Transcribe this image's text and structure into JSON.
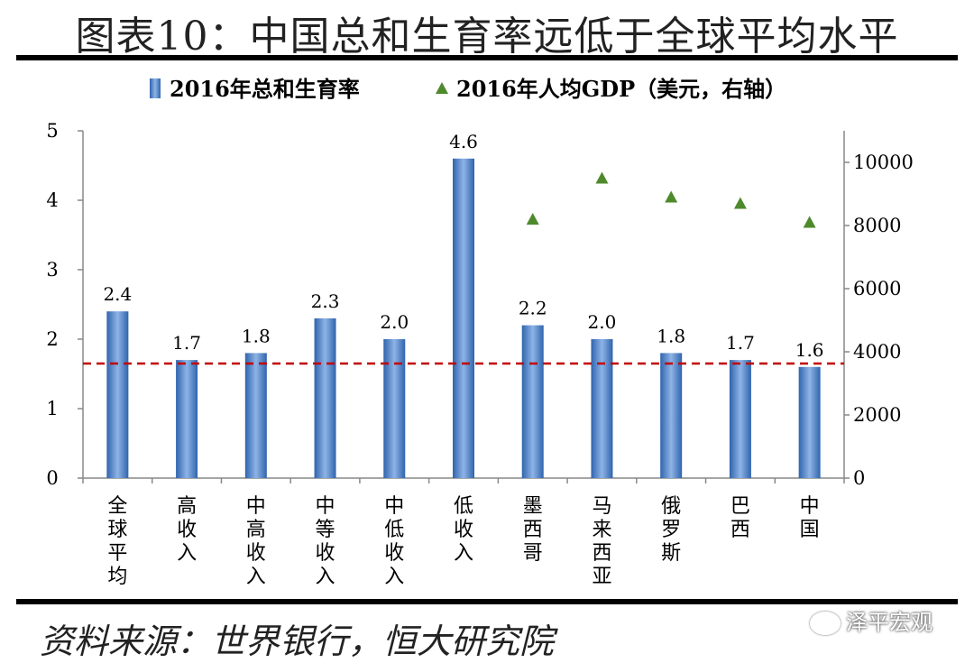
{
  "title": "图表10：中国总和生育率远低于全球平均水平",
  "source": "资料来源：世界银行，恒大研究院",
  "watermark": "泽平宏观",
  "colors": {
    "bar": "#4a7fc9",
    "bar_light": "#8fb4e6",
    "marker": "#4e8a2c",
    "ref_line": "#c00000"
  },
  "chart_data": {
    "type": "bar",
    "categories": [
      "全球平均",
      "高收入",
      "中高收入",
      "中等收入",
      "中低收入",
      "低收入",
      "墨西哥",
      "马来西亚",
      "俄罗斯",
      "巴西",
      "中国"
    ],
    "series": [
      {
        "name": "2016年总和生育率",
        "type": "bar",
        "axis": "left",
        "values": [
          2.4,
          1.7,
          1.8,
          2.3,
          2.0,
          4.6,
          2.2,
          2.0,
          1.8,
          1.7,
          1.6
        ],
        "value_labels": [
          "2.4",
          "1.7",
          "1.8",
          "2.3",
          "2.0",
          "4.6",
          "2.2",
          "2.0",
          "1.8",
          "1.7",
          "1.6"
        ]
      },
      {
        "name": "2016年人均GDP（美元，右轴）",
        "type": "scatter",
        "axis": "right",
        "values": [
          null,
          null,
          null,
          null,
          null,
          null,
          8200,
          9500,
          8900,
          8700,
          8100
        ]
      }
    ],
    "reference_line": {
      "axis": "left",
      "value": 1.65,
      "style": "dashed"
    },
    "y_left": {
      "ylim": [
        0,
        5
      ],
      "ticks": [
        "0",
        "1",
        "2",
        "3",
        "4",
        "5"
      ]
    },
    "y_right": {
      "ylim": [
        0,
        11000
      ],
      "ticks": [
        "0",
        "2000",
        "4000",
        "6000",
        "8000",
        "10000"
      ]
    },
    "legend_position": "top",
    "grid": false
  }
}
